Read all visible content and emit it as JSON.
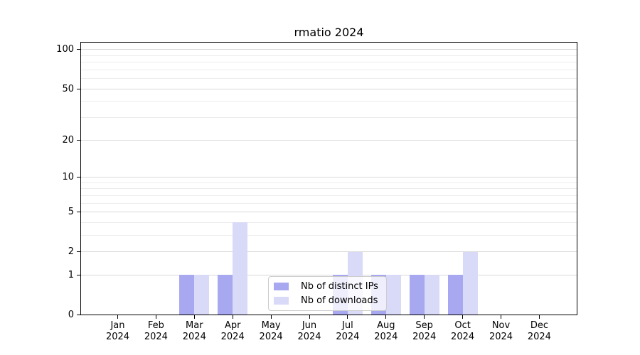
{
  "chart_data": {
    "type": "bar",
    "title": "rmatio 2024",
    "categories": [
      "Jan 2024",
      "Feb 2024",
      "Mar 2024",
      "Apr 2024",
      "May 2024",
      "Jun 2024",
      "Jul 2024",
      "Aug 2024",
      "Sep 2024",
      "Oct 2024",
      "Nov 2024",
      "Dec 2024"
    ],
    "months": [
      "Jan",
      "Feb",
      "Mar",
      "Apr",
      "May",
      "Jun",
      "Jul",
      "Aug",
      "Sep",
      "Oct",
      "Nov",
      "Dec"
    ],
    "year": "2024",
    "series": [
      {
        "name": "Nb of distinct IPs",
        "color": "#a8a8f0",
        "values": [
          0,
          0,
          1,
          1,
          0,
          0,
          1,
          1,
          1,
          1,
          0,
          0
        ]
      },
      {
        "name": "Nb of downloads",
        "color": "#d9d9f8",
        "values": [
          0,
          0,
          1,
          4,
          0,
          0,
          2,
          1,
          1,
          2,
          0,
          0
        ]
      }
    ],
    "y_scale": "log1p",
    "y_ticks": [
      0,
      1,
      2,
      5,
      10,
      20,
      50,
      100
    ],
    "y_minor_ticks": [
      3,
      4,
      6,
      7,
      8,
      9,
      30,
      40,
      60,
      70,
      80,
      90
    ],
    "ylim": [
      0,
      116
    ],
    "grid": true,
    "legend_position": "lower center"
  },
  "colors": {
    "axis": "#000000",
    "grid_major": "#d9d9d9",
    "grid_minor": "#ececec",
    "legend_border": "#cccccc",
    "bar_distinct_ips": "#a8a8f0",
    "bar_downloads": "#d9d9f8"
  }
}
